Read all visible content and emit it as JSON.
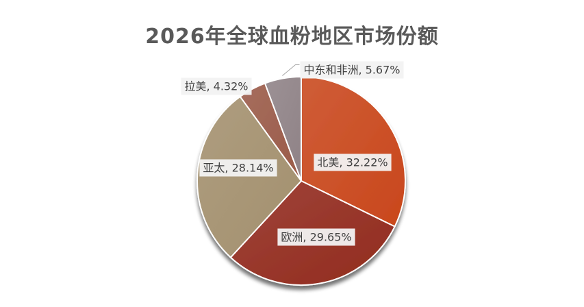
{
  "chart_data": {
    "type": "pie",
    "title": "2026年全球血粉地区市场份额",
    "categories": [
      "北美",
      "欧洲",
      "亚太",
      "拉美",
      "中东和非洲"
    ],
    "values": [
      32.22,
      29.65,
      28.14,
      4.32,
      5.67
    ],
    "labels": [
      "北美, 32.22%",
      "欧洲, 29.65%",
      "亚太, 28.14%",
      "拉美, 4.32%",
      "中东和非洲, 5.67%"
    ],
    "colors": [
      "#c9471c",
      "#922b1e",
      "#a3906e",
      "#9a5a48",
      "#8f8286"
    ],
    "legend": "none"
  }
}
